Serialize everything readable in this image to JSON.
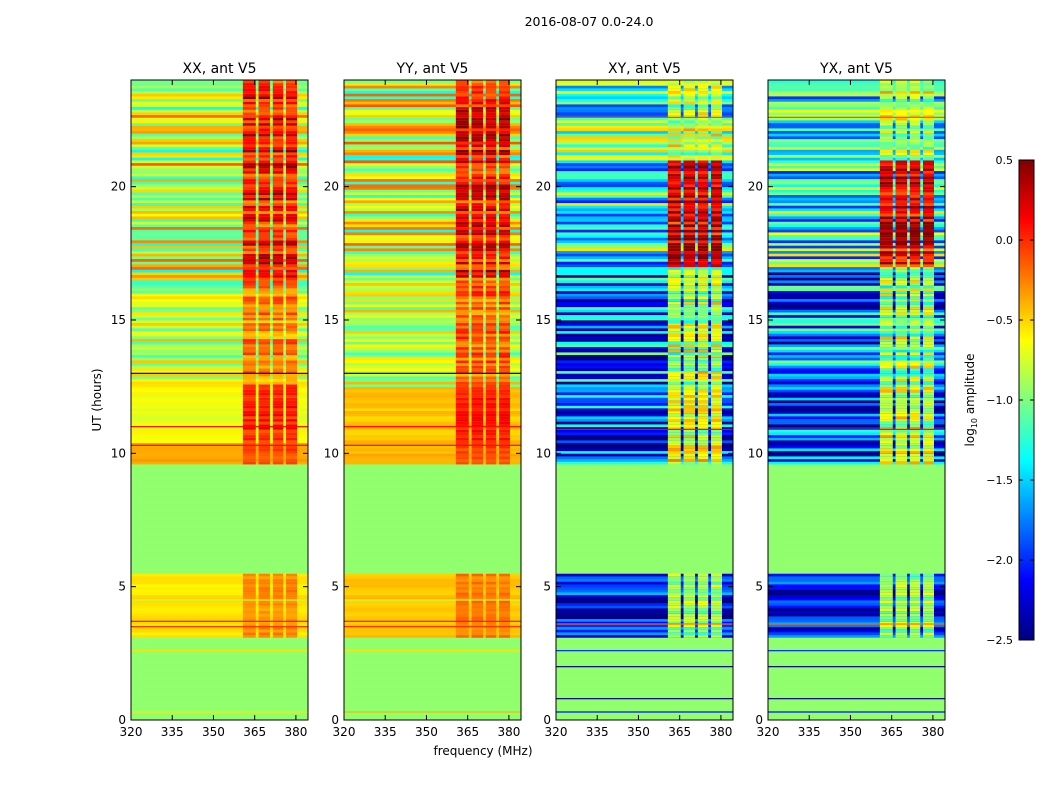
{
  "chart_data": {
    "type": "heatmap",
    "title": "2016-08-07 0.0-24.0",
    "xlabel": "frequency (MHz)",
    "ylabel": "UT (hours)",
    "xlim": [
      320,
      384.4
    ],
    "ylim": [
      0,
      24
    ],
    "xticks": [
      "320",
      "335",
      "350",
      "365",
      "380"
    ],
    "xtick_values": [
      320,
      335,
      350,
      365,
      380
    ],
    "yticks": [
      "0",
      "5",
      "10",
      "15",
      "20"
    ],
    "ytick_values": [
      0,
      5,
      10,
      15,
      20
    ],
    "bright_bands_mhz": [
      [
        360.7,
        365.4
      ],
      [
        366.4,
        370.6
      ],
      [
        371.6,
        375.4
      ],
      [
        376.4,
        380.4
      ]
    ],
    "colorbar": {
      "label": "log10 amplitude",
      "label_main": "log",
      "label_sub": "10",
      "label_rest": " amplitude",
      "range": [
        -2.5,
        0.5
      ],
      "colormap": "jet",
      "ticks": [
        "−2.5",
        "−2.0",
        "−1.5",
        "−1.0",
        "−0.5",
        "0.0",
        "0.5"
      ],
      "tick_values": [
        -2.5,
        -2.0,
        -1.5,
        -1.0,
        -0.5,
        0.0,
        0.5
      ]
    },
    "panels": [
      {
        "title": "XX, ant V5",
        "segments": [
          {
            "t": [
              0,
              3.1
            ],
            "base": -0.95,
            "band": -0.95,
            "var": 0,
            "stripes": false
          },
          {
            "t": [
              3.1,
              5.5
            ],
            "base": -0.55,
            "band": -0.3,
            "var": 0.12,
            "stripes": false
          },
          {
            "t": [
              5.5,
              9.6
            ],
            "base": -0.95,
            "band": -0.95,
            "var": 0,
            "stripes": false
          },
          {
            "t": [
              9.6,
              10.4
            ],
            "base": -0.35,
            "band": -0.1,
            "var": 0.1,
            "stripes": false
          },
          {
            "t": [
              10.4,
              12.5
            ],
            "base": -0.68,
            "band": 0.0,
            "var": 0.2,
            "stripes": false
          },
          {
            "t": [
              12.5,
              16.6
            ],
            "base": -0.8,
            "band": -0.3,
            "var": 0.3,
            "stripes": true
          },
          {
            "t": [
              16.6,
              24
            ],
            "base": -0.75,
            "band": 0.0,
            "var": 0.45,
            "stripes": true
          }
        ],
        "lines": [
          [
            0.3,
            -0.55
          ],
          [
            2.6,
            -0.55
          ],
          [
            3.5,
            0.0
          ],
          [
            3.7,
            0.05
          ],
          [
            4.5,
            -0.8
          ],
          [
            10.3,
            0.1
          ],
          [
            11.0,
            0.1
          ],
          [
            13.0,
            -2.5
          ]
        ]
      },
      {
        "title": "YY, ant V5",
        "segments": [
          {
            "t": [
              0,
              3.1
            ],
            "base": -0.95,
            "band": -0.95,
            "var": 0,
            "stripes": false
          },
          {
            "t": [
              3.1,
              5.5
            ],
            "base": -0.45,
            "band": -0.25,
            "var": 0.1,
            "stripes": false
          },
          {
            "t": [
              5.5,
              9.6
            ],
            "base": -0.95,
            "band": -0.95,
            "var": 0,
            "stripes": false
          },
          {
            "t": [
              9.6,
              10.4
            ],
            "base": -0.4,
            "band": -0.1,
            "var": 0.1,
            "stripes": false
          },
          {
            "t": [
              10.4,
              12.5
            ],
            "base": -0.45,
            "band": 0.05,
            "var": 0.15,
            "stripes": false
          },
          {
            "t": [
              12.5,
              16.6
            ],
            "base": -0.75,
            "band": -0.2,
            "var": 0.3,
            "stripes": true
          },
          {
            "t": [
              16.6,
              24
            ],
            "base": -0.75,
            "band": 0.05,
            "var": 0.45,
            "stripes": true
          }
        ],
        "lines": [
          [
            0.3,
            -0.4
          ],
          [
            2.6,
            -0.55
          ],
          [
            3.5,
            0.0
          ],
          [
            3.7,
            0.05
          ],
          [
            4.5,
            -0.8
          ],
          [
            10.3,
            0.1
          ],
          [
            11.0,
            0.1
          ],
          [
            13.0,
            -2.5
          ]
        ]
      },
      {
        "title": "XY, ant V5",
        "segments": [
          {
            "t": [
              0,
              3.1
            ],
            "base": -0.95,
            "band": -0.95,
            "var": 0,
            "stripes": false
          },
          {
            "t": [
              3.1,
              5.5
            ],
            "base": -2.05,
            "band": -1.0,
            "var": 0.35,
            "stripes": true
          },
          {
            "t": [
              5.5,
              9.6
            ],
            "base": -0.95,
            "band": -0.95,
            "var": 0,
            "stripes": false
          },
          {
            "t": [
              9.6,
              12.5
            ],
            "base": -1.95,
            "band": -0.8,
            "var": 0.5,
            "stripes": true
          },
          {
            "t": [
              12.5,
              17.0
            ],
            "base": -1.8,
            "band": -1.0,
            "var": 0.6,
            "stripes": true
          },
          {
            "t": [
              17.0,
              21.0
            ],
            "base": -1.3,
            "band": 0.2,
            "var": 0.55,
            "stripes": true
          },
          {
            "t": [
              21.0,
              24
            ],
            "base": -1.2,
            "band": -0.9,
            "var": 0.55,
            "stripes": true
          }
        ],
        "lines": [
          [
            0.3,
            -2.1
          ],
          [
            0.8,
            -2.5
          ],
          [
            2.0,
            -2.5
          ],
          [
            2.6,
            -2.0
          ],
          [
            3.6,
            -0.2
          ],
          [
            10.9,
            0.1
          ],
          [
            22.6,
            -0.1
          ]
        ]
      },
      {
        "title": "YX, ant V5",
        "segments": [
          {
            "t": [
              0,
              3.1
            ],
            "base": -0.95,
            "band": -0.95,
            "var": 0,
            "stripes": false
          },
          {
            "t": [
              3.1,
              5.5
            ],
            "base": -2.05,
            "band": -1.0,
            "var": 0.35,
            "stripes": true
          },
          {
            "t": [
              5.5,
              9.6
            ],
            "base": -0.95,
            "band": -0.95,
            "var": 0,
            "stripes": false
          },
          {
            "t": [
              9.6,
              12.5
            ],
            "base": -1.95,
            "band": -0.8,
            "var": 0.5,
            "stripes": true
          },
          {
            "t": [
              12.5,
              17.0
            ],
            "base": -1.8,
            "band": -1.0,
            "var": 0.6,
            "stripes": true
          },
          {
            "t": [
              17.0,
              21.0
            ],
            "base": -1.3,
            "band": 0.2,
            "var": 0.55,
            "stripes": true
          },
          {
            "t": [
              21.0,
              24
            ],
            "base": -1.2,
            "band": -0.9,
            "var": 0.55,
            "stripes": true
          }
        ],
        "lines": [
          [
            0.3,
            -2.1
          ],
          [
            0.8,
            -2.5
          ],
          [
            2.0,
            -2.5
          ],
          [
            2.6,
            -2.0
          ],
          [
            3.6,
            -0.2
          ],
          [
            10.9,
            0.1
          ],
          [
            22.6,
            -0.1
          ]
        ]
      }
    ]
  }
}
